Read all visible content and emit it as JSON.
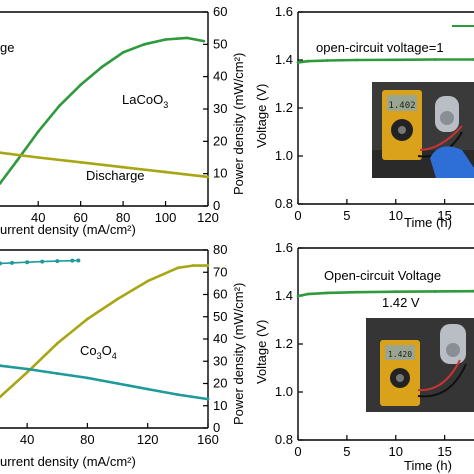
{
  "panels": [
    {
      "id": "a",
      "xlabel": "urrent density (mA/cm²)",
      "x_ticks": [
        "40",
        "60",
        "80",
        "100",
        "120"
      ],
      "y_right_label": "Power density (mW/cm²)",
      "y_right_ticks": [
        "0",
        "10",
        "20",
        "30",
        "40",
        "50",
        "60"
      ],
      "annotations": {
        "material_main": "LaCoO",
        "material_sub": "3",
        "discharge": "Discharge",
        "charge_partial": "ge"
      }
    },
    {
      "id": "b",
      "xlabel": "Time (h)",
      "x_ticks": [
        "0",
        "5",
        "10",
        "15"
      ],
      "ylabel": "Voltage (V)",
      "y_ticks": [
        "0.8",
        "1.0",
        "1.2",
        "1.4",
        "1.6"
      ],
      "legend_text": "open-circuit voltage=1"
    },
    {
      "id": "c",
      "xlabel": "urrent density (mA/cm²)",
      "x_ticks": [
        "40",
        "80",
        "120",
        "160"
      ],
      "y_right_label": "Power density (mW/cm²)",
      "y_right_ticks": [
        "0",
        "10",
        "20",
        "30",
        "40",
        "50",
        "60",
        "70",
        "80"
      ],
      "annotations": {
        "material_main": "Co",
        "material_sub1": "3",
        "material_mid": "O",
        "material_sub2": "4"
      }
    },
    {
      "id": "d",
      "xlabel": "Time (h)",
      "x_ticks": [
        "0",
        "5",
        "10",
        "15"
      ],
      "ylabel": "Voltage (V)",
      "y_ticks": [
        "0.8",
        "1.0",
        "1.2",
        "1.4",
        "1.6"
      ],
      "title_text": "Open-circuit Voltage",
      "value_text": "1.42 V"
    }
  ],
  "chart_data": [
    {
      "type": "line",
      "panel": "a",
      "xlim": [
        22,
        120
      ],
      "ylim_right": [
        0,
        60
      ],
      "series": [
        {
          "color": "#2e9a3c",
          "x": [
            22,
            30,
            40,
            50,
            60,
            70,
            80,
            90,
            100,
            110,
            118
          ],
          "y": [
            7,
            14,
            23,
            31,
            37.5,
            43,
            47.5,
            50,
            51.5,
            52,
            51
          ]
        },
        {
          "color": "#a8a614",
          "x": [
            22,
            40,
            60,
            80,
            100,
            120
          ],
          "y": [
            16.5,
            15,
            13.5,
            12,
            10.5,
            9
          ]
        }
      ]
    },
    {
      "type": "line",
      "panel": "b",
      "xlim": [
        0,
        18
      ],
      "ylim": [
        0.8,
        1.6
      ],
      "series": [
        {
          "color": "#2e9a3c",
          "x": [
            0,
            1,
            3,
            6,
            10,
            14,
            18
          ],
          "y": [
            1.39,
            1.395,
            1.398,
            1.4,
            1.401,
            1.402,
            1.402
          ]
        }
      ]
    },
    {
      "type": "line",
      "panel": "c",
      "xlim": [
        22,
        160
      ],
      "ylim_right": [
        0,
        80
      ],
      "series": [
        {
          "color": "#a8a614",
          "x": [
            22,
            40,
            60,
            80,
            100,
            120,
            140,
            150,
            160
          ],
          "y": [
            14,
            25,
            38,
            49,
            58,
            66,
            72,
            73,
            73
          ]
        },
        {
          "color": "#1f9a9a",
          "x": [
            22,
            40,
            60,
            80,
            100,
            120,
            140,
            160
          ],
          "y": [
            28,
            26.5,
            24.5,
            22.5,
            20,
            17.5,
            15,
            13
          ]
        },
        {
          "color": "#1f9a9a",
          "marker": "circle",
          "x": [
            22,
            30,
            40,
            50,
            60,
            70,
            74
          ],
          "y": [
            74,
            74.2,
            74.5,
            74.8,
            75,
            75.2,
            75.3
          ]
        }
      ]
    },
    {
      "type": "line",
      "panel": "d",
      "xlim": [
        0,
        18
      ],
      "ylim": [
        0.8,
        1.6
      ],
      "series": [
        {
          "color": "#2e9a3c",
          "x": [
            0,
            1,
            3,
            6,
            10,
            14,
            18
          ],
          "y": [
            1.4,
            1.408,
            1.413,
            1.416,
            1.418,
            1.419,
            1.42
          ]
        }
      ]
    }
  ]
}
